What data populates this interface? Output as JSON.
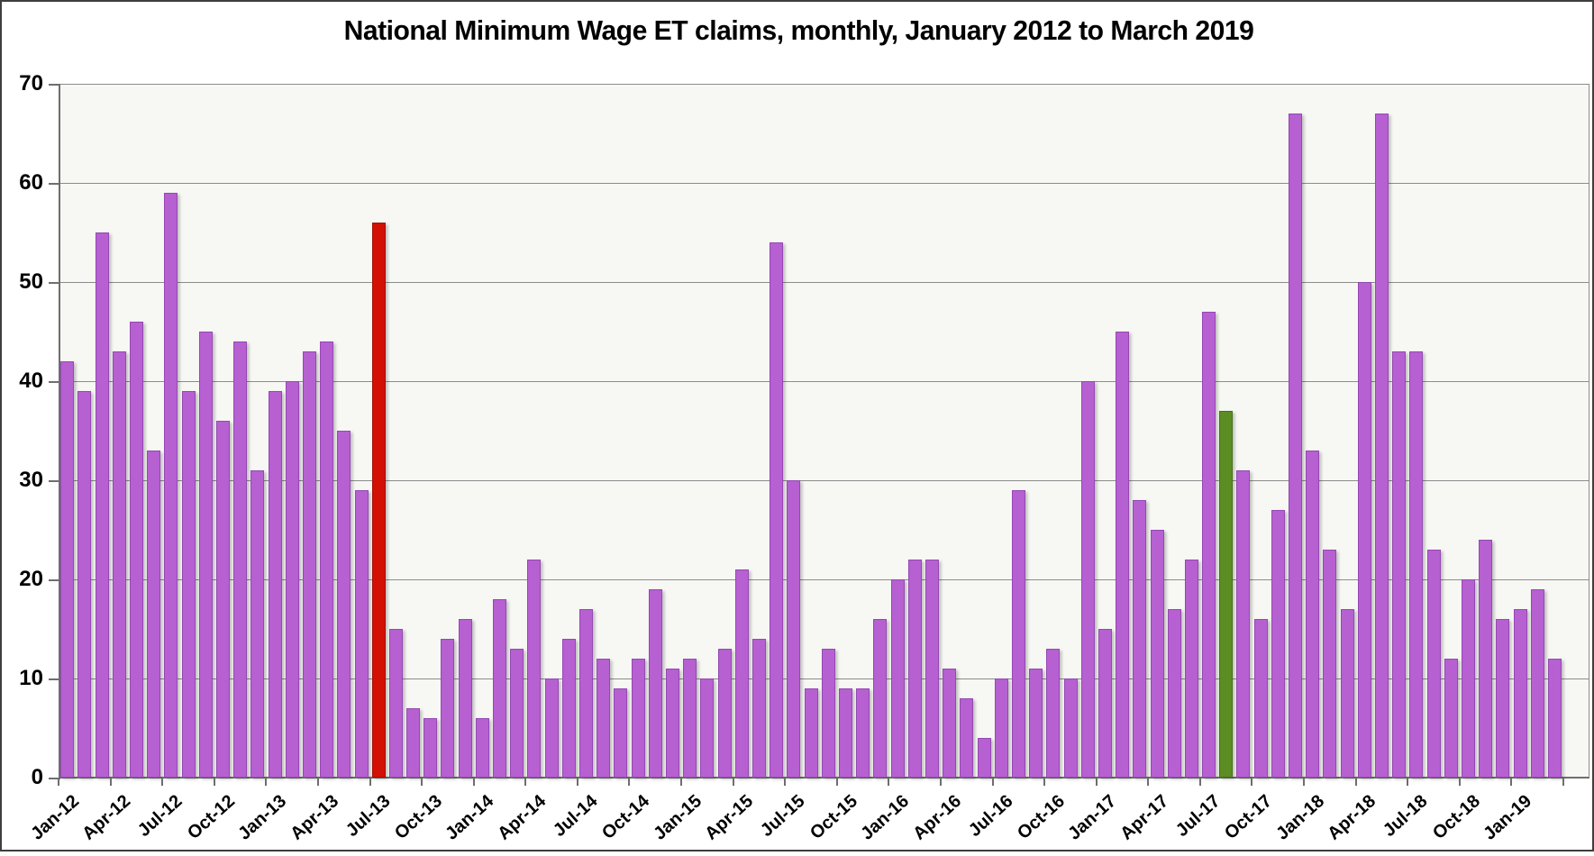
{
  "title": "National Minimum Wage ET claims, monthly, January 2012 to March 2019",
  "colors": {
    "bar_default": "#b760d2",
    "bar_default_border": "#9448b3",
    "bar_red": "#d21004",
    "bar_red_border": "#a50d03",
    "bar_green": "#5b8d22",
    "bar_green_border": "#47701b",
    "plot_background": "#f7f8f4",
    "gridline": "#8c8c8c",
    "axis": "#6e6e6e",
    "text": "#000000"
  },
  "chart_data": {
    "type": "bar",
    "title": "National Minimum Wage ET claims, monthly, January 2012 to March 2019",
    "xlabel": "",
    "ylabel": "",
    "ylim": [
      0,
      70
    ],
    "ytick_values": [
      70,
      60,
      50,
      40,
      30,
      20,
      10,
      0
    ],
    "grid": true,
    "legend": false,
    "categories": [
      "Jan-12",
      "Feb-12",
      "Mar-12",
      "Apr-12",
      "May-12",
      "Jun-12",
      "Jul-12",
      "Aug-12",
      "Sep-12",
      "Oct-12",
      "Nov-12",
      "Dec-12",
      "Jan-13",
      "Feb-13",
      "Mar-13",
      "Apr-13",
      "May-13",
      "Jun-13",
      "Jul-13",
      "Aug-13",
      "Sep-13",
      "Oct-13",
      "Nov-13",
      "Dec-13",
      "Jan-14",
      "Feb-14",
      "Mar-14",
      "Apr-14",
      "May-14",
      "Jun-14",
      "Jul-14",
      "Aug-14",
      "Sep-14",
      "Oct-14",
      "Nov-14",
      "Dec-14",
      "Jan-15",
      "Feb-15",
      "Mar-15",
      "Apr-15",
      "May-15",
      "Jun-15",
      "Jul-15",
      "Aug-15",
      "Sep-15",
      "Oct-15",
      "Nov-15",
      "Dec-15",
      "Jan-16",
      "Feb-16",
      "Mar-16",
      "Apr-16",
      "May-16",
      "Jun-16",
      "Jul-16",
      "Aug-16",
      "Sep-16",
      "Oct-16",
      "Nov-16",
      "Dec-16",
      "Jan-17",
      "Feb-17",
      "Mar-17",
      "Apr-17",
      "May-17",
      "Jun-17",
      "Jul-17",
      "Aug-17",
      "Sep-17",
      "Oct-17",
      "Nov-17",
      "Dec-17",
      "Jan-18",
      "Feb-18",
      "Mar-18",
      "Apr-18",
      "May-18",
      "Jun-18",
      "Jul-18",
      "Aug-18",
      "Sep-18",
      "Oct-18",
      "Nov-18",
      "Dec-18",
      "Jan-19",
      "Feb-19",
      "Mar-19"
    ],
    "values": [
      42,
      39,
      55,
      43,
      46,
      33,
      59,
      39,
      45,
      36,
      44,
      31,
      39,
      40,
      43,
      44,
      35,
      29,
      56,
      15,
      7,
      6,
      14,
      16,
      6,
      18,
      13,
      22,
      10,
      14,
      17,
      12,
      9,
      12,
      19,
      11,
      12,
      10,
      13,
      21,
      14,
      54,
      30,
      9,
      13,
      9,
      9,
      16,
      20,
      22,
      22,
      11,
      8,
      4,
      10,
      29,
      11,
      13,
      10,
      40,
      15,
      45,
      28,
      25,
      17,
      22,
      47,
      37,
      31,
      16,
      27,
      67,
      33,
      23,
      17,
      50,
      67,
      43,
      43,
      23,
      12,
      20,
      24,
      16,
      17,
      19,
      12
    ],
    "highlighted_bars": [
      {
        "category": "Jul-13",
        "value": 56,
        "color_key": "bar_red"
      },
      {
        "category": "Aug-17",
        "value": 37,
        "color_key": "bar_green"
      }
    ],
    "xtick_labels": [
      "Jan-12",
      "Apr-12",
      "Jul-12",
      "Oct-12",
      "Jan-13",
      "Apr-13",
      "Jul-13",
      "Oct-13",
      "Jan-14",
      "Apr-14",
      "Jul-14",
      "Oct-14",
      "Jan-15",
      "Apr-15",
      "Jul-15",
      "Oct-15",
      "Jan-16",
      "Apr-16",
      "Jul-16",
      "Oct-16",
      "Jan-17",
      "Apr-17",
      "Jul-17",
      "Oct-17",
      "Jan-18",
      "Apr-18",
      "Jul-18",
      "Oct-18",
      "Jan-19"
    ],
    "xtick_label_every_n_months": 3
  }
}
